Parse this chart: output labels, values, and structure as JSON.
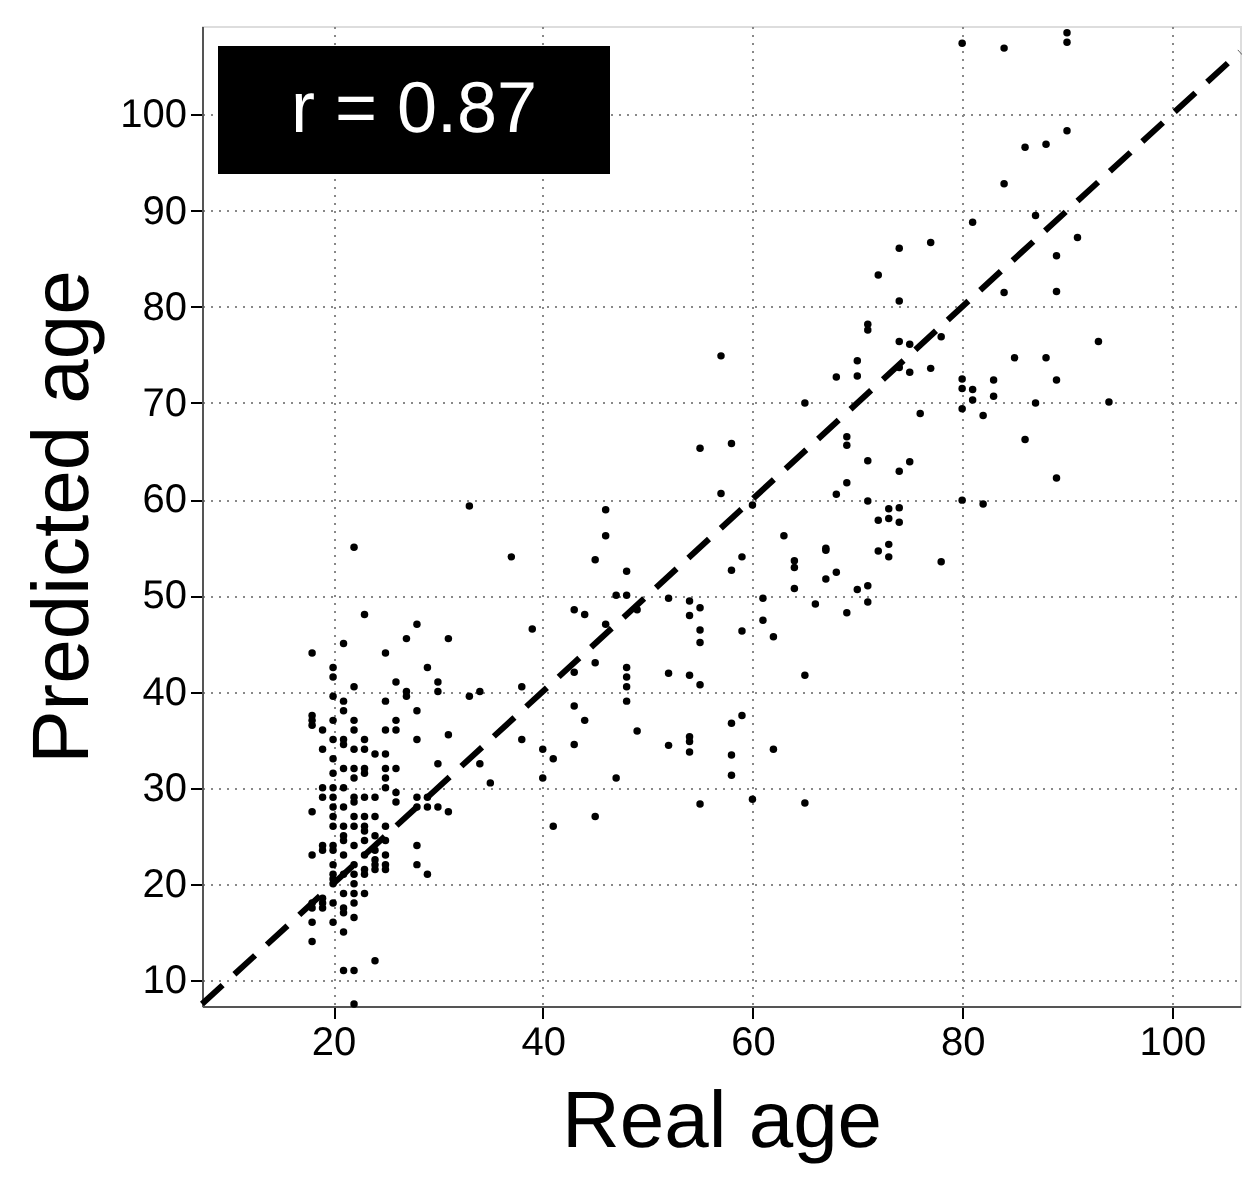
{
  "chart_data": {
    "type": "scatter",
    "xlabel": "Real age",
    "ylabel": "Predicted age",
    "annotations": [
      "r = 0.87"
    ],
    "xlim": [
      7.5,
      106.5
    ],
    "ylim": [
      7.3,
      109.2
    ],
    "xticks": [
      20,
      40,
      60,
      80,
      100
    ],
    "yticks": [
      10,
      20,
      30,
      40,
      50,
      60,
      70,
      80,
      90,
      100
    ],
    "grid": true,
    "marker": "circle",
    "series": [
      {
        "color": "#000000",
        "x": [
          18,
          18,
          18,
          18,
          18,
          18,
          18,
          18,
          18,
          18,
          19,
          19,
          19,
          19,
          19,
          19,
          19,
          19,
          19,
          20,
          20,
          20,
          20,
          20,
          20,
          20,
          20,
          20,
          20,
          20,
          20,
          20,
          20,
          20,
          20,
          20,
          20,
          20,
          20,
          21,
          21,
          21,
          21,
          21,
          21,
          21,
          21,
          21,
          21,
          21,
          21,
          21,
          21,
          21,
          21,
          21,
          21,
          22,
          22,
          22,
          22,
          22,
          22,
          22,
          22,
          22,
          22,
          22,
          22,
          22,
          22,
          22,
          22,
          22,
          22,
          22,
          22,
          23,
          23,
          23,
          23,
          23,
          23,
          23,
          23,
          23,
          23,
          23,
          23,
          23,
          23,
          24,
          24,
          24,
          24,
          24,
          24,
          24,
          24,
          24,
          25,
          25,
          25,
          25,
          25,
          25,
          25,
          25,
          25,
          25,
          25,
          25,
          26,
          26,
          26,
          26,
          26,
          26,
          27,
          27,
          27,
          28,
          28,
          28,
          28,
          28,
          28,
          28,
          29,
          29,
          29,
          29,
          30,
          30,
          30,
          30,
          31,
          31,
          31,
          33,
          33,
          34,
          34,
          35,
          37,
          38,
          38,
          39,
          40,
          40,
          41,
          41,
          43,
          43,
          43,
          43,
          44,
          44,
          45,
          45,
          45,
          46,
          46,
          46,
          47,
          47,
          48,
          48,
          48,
          48,
          48,
          48,
          49,
          49,
          52,
          52,
          52,
          54,
          54,
          54,
          54,
          54,
          54,
          55,
          55,
          55,
          55,
          55,
          55,
          57,
          57,
          58,
          58,
          58,
          58,
          58,
          59,
          59,
          59,
          60,
          60,
          61,
          61,
          62,
          62,
          63,
          64,
          64,
          64,
          65,
          65,
          65,
          66,
          67,
          67,
          67,
          68,
          68,
          68,
          69,
          69,
          69,
          69,
          70,
          70,
          70,
          71,
          71,
          71,
          71,
          71,
          71,
          72,
          72,
          72,
          73,
          73,
          73,
          73,
          74,
          74,
          74,
          74,
          74,
          74,
          74,
          75,
          75,
          75,
          76,
          77,
          77,
          78,
          78,
          80,
          80,
          80,
          80,
          80,
          81,
          81,
          81,
          82,
          82,
          83,
          83,
          84,
          84,
          84,
          85,
          86,
          86,
          87,
          87,
          88,
          88,
          89,
          89,
          89,
          89,
          90,
          90,
          90,
          91,
          93,
          94
        ],
        "values": [
          44,
          37.5,
          37,
          36.5,
          27.5,
          23,
          18,
          17.5,
          16,
          14,
          36,
          34,
          30,
          29,
          24,
          23.5,
          18.5,
          18,
          17.5,
          42.5,
          41.5,
          39.5,
          37,
          35,
          33,
          31.5,
          30,
          29,
          28,
          27,
          26,
          24,
          23.5,
          22,
          21,
          20.5,
          20,
          18,
          16,
          45,
          39,
          38,
          35,
          34.5,
          32,
          30,
          28,
          26,
          25,
          24.5,
          23,
          21,
          19,
          17.5,
          17,
          15,
          11,
          55,
          40.5,
          37,
          36,
          34,
          32,
          31,
          29,
          28.5,
          27,
          26,
          24,
          22,
          21,
          20,
          19,
          18,
          16.5,
          11,
          7.5,
          48,
          35,
          34,
          32,
          31.5,
          29,
          27,
          26,
          25.5,
          24.5,
          23,
          21.5,
          21,
          19,
          33.5,
          29,
          27,
          25,
          23.5,
          22.5,
          22,
          21.5,
          12,
          44,
          39,
          36,
          33.5,
          32,
          31,
          30,
          26,
          24.5,
          23,
          22,
          21.5,
          41,
          37,
          36,
          32,
          29.5,
          28.5,
          45.5,
          40,
          39.5,
          47,
          38,
          35,
          29,
          28,
          24,
          22,
          42.5,
          29,
          28,
          21,
          41,
          40,
          32.5,
          28,
          45.5,
          35.5,
          27.5,
          59.3,
          39.5,
          40,
          32.5,
          30.5,
          54,
          40.5,
          35,
          46.5,
          34,
          31,
          33,
          26,
          48.5,
          42,
          38.5,
          34.5,
          48,
          37,
          53.7,
          43,
          27,
          58.9,
          56.2,
          47,
          50,
          31,
          52.5,
          50,
          42.5,
          41.5,
          40.5,
          39,
          48.5,
          35.9,
          49.7,
          41.9,
          34.4,
          49.4,
          47.9,
          41.7,
          35.3,
          34.8,
          33.7,
          48.7,
          46.4,
          45.1,
          40.7,
          28.3,
          65.3,
          60.6,
          74.9,
          65.8,
          52.6,
          36.7,
          33.4,
          31.3,
          54,
          46.3,
          37.5,
          59.4,
          28.8,
          49.7,
          47.4,
          45.7,
          34,
          56.2,
          53.6,
          52.9,
          50.7,
          70,
          41.7,
          28.4,
          49.1,
          54.9,
          51.7,
          54.7,
          52.4,
          60.5,
          72.7,
          66.5,
          61.7,
          48.2,
          65.6,
          74.4,
          72.8,
          50.6,
          78.2,
          77.6,
          64,
          59.8,
          51,
          49.3,
          83.3,
          57.8,
          54.6,
          59,
          58,
          55.3,
          54,
          86.1,
          80.6,
          76.4,
          73.7,
          62.9,
          59.1,
          57.6,
          76.1,
          73.2,
          63.9,
          68.9,
          86.7,
          73.6,
          76.9,
          53.5,
          107.4,
          72.5,
          71.5,
          69.4,
          59.9,
          88.8,
          71.4,
          70.3,
          68.7,
          59.5,
          72.4,
          70.7,
          106.9,
          92.8,
          81.5,
          74.7,
          96.6,
          66.2,
          89.5,
          70,
          96.9,
          74.7,
          85.3,
          81.6,
          72.4,
          62.2,
          108.5,
          107.5,
          98.3,
          87.2,
          76.4,
          70.1
        ]
      },
      {
        "type": "line",
        "marker": "none",
        "color": "#000000",
        "line_style": "dashed",
        "x": [
          7.5,
          106.5
        ],
        "values": [
          7.5,
          106.5
        ]
      }
    ]
  }
}
